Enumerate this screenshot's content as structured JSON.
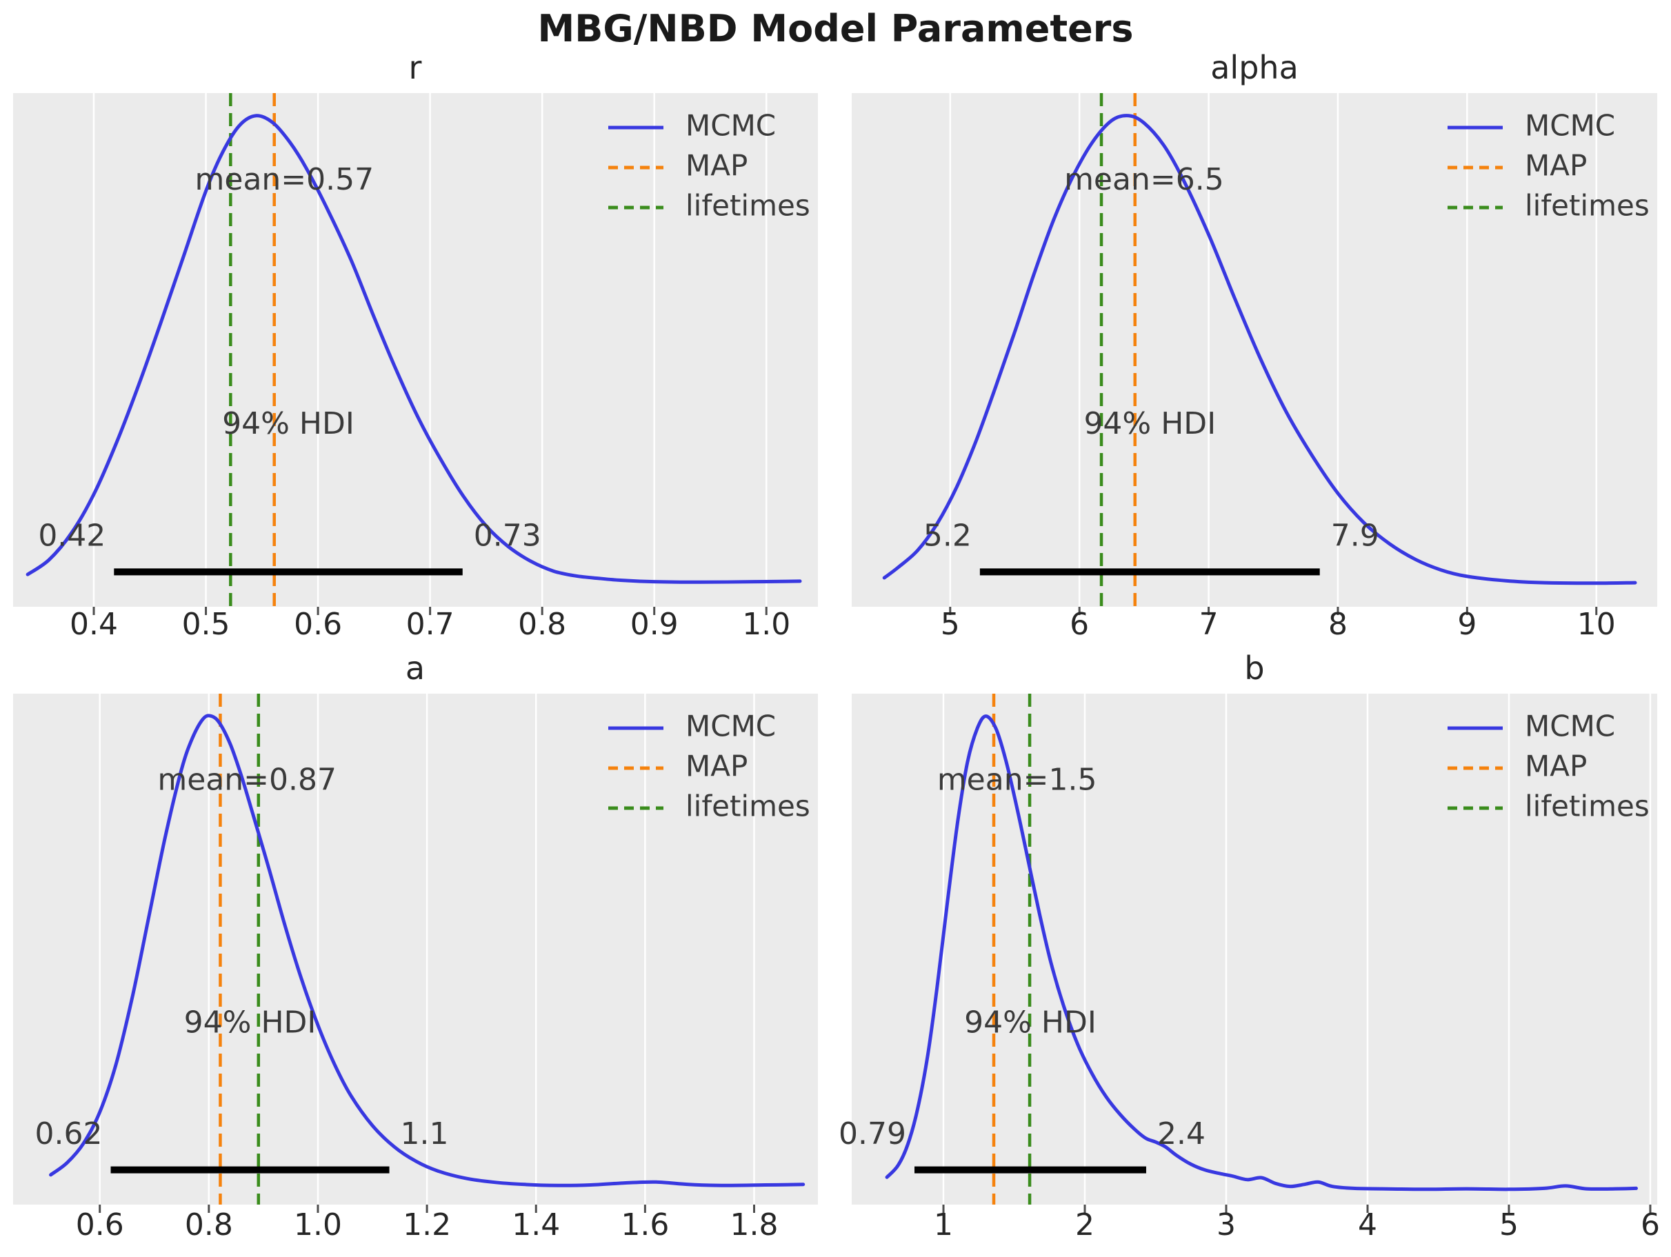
{
  "title": "MBG/NBD Model Parameters",
  "annotations": {
    "hdi_text": "94% HDI"
  },
  "legend": {
    "entries": [
      {
        "name": "mcmc",
        "label": "MCMC",
        "style": "solid",
        "color_key": "mcmc"
      },
      {
        "name": "map",
        "label": "MAP",
        "style": "dashed",
        "color_key": "map"
      },
      {
        "name": "lifetimes",
        "label": "lifetimes",
        "style": "dashed",
        "color_key": "lifetimes"
      }
    ]
  },
  "colors": {
    "mcmc": "#3838e0",
    "map": "#f5820d",
    "lifetimes": "#3a8c1c",
    "hdi_bar": "#000000",
    "plot_bg": "#ebebeb",
    "grid": "#ffffff",
    "tick": "#4d4d4d",
    "tick_label": "#262626",
    "text": "#3a3a3a",
    "title": "#262626",
    "suptitle": "#1a1a1a"
  },
  "chart_data": [
    {
      "name": "r",
      "type": "kde-line",
      "title": "r",
      "xlim": [
        0.328,
        1.046
      ],
      "tick_values": [
        0.4,
        0.5,
        0.6,
        0.7,
        0.8,
        0.9,
        1.0
      ],
      "tick_labels": [
        "0.4",
        "0.5",
        "0.6",
        "0.7",
        "0.8",
        "0.9",
        "1.0"
      ],
      "map_line_x": 0.561,
      "lifetimes_line_x": 0.522,
      "mean": {
        "label": "mean=0.57",
        "value": 0.57
      },
      "hdi": {
        "lo": 0.418,
        "hi": 0.729,
        "lo_label": "0.42",
        "hi_label": "0.73"
      },
      "series": [
        {
          "name": "MCMC",
          "x": [
            0.341,
            0.36,
            0.38,
            0.4,
            0.42,
            0.44,
            0.46,
            0.48,
            0.5,
            0.515,
            0.53,
            0.545,
            0.56,
            0.575,
            0.59,
            0.61,
            0.63,
            0.65,
            0.67,
            0.69,
            0.71,
            0.73,
            0.75,
            0.77,
            0.79,
            0.81,
            0.83,
            0.85,
            0.87,
            0.9,
            0.94,
            0.99,
            1.03
          ],
          "density_norm": [
            0.055,
            0.085,
            0.14,
            0.22,
            0.325,
            0.445,
            0.575,
            0.71,
            0.845,
            0.925,
            0.98,
            1.0,
            0.985,
            0.945,
            0.89,
            0.8,
            0.7,
            0.585,
            0.475,
            0.375,
            0.29,
            0.215,
            0.155,
            0.112,
            0.082,
            0.062,
            0.052,
            0.047,
            0.043,
            0.04,
            0.039,
            0.04,
            0.041
          ]
        }
      ]
    },
    {
      "name": "alpha",
      "type": "kde-line",
      "title": "alpha",
      "xlim": [
        4.238,
        10.471
      ],
      "tick_values": [
        5,
        6,
        7,
        8,
        9,
        10
      ],
      "tick_labels": [
        "5",
        "6",
        "7",
        "8",
        "9",
        "10"
      ],
      "map_line_x": 6.43,
      "lifetimes_line_x": 6.17,
      "mean": {
        "label": "mean=6.5",
        "value": 6.5
      },
      "hdi": {
        "lo": 5.23,
        "hi": 7.86,
        "lo_label": "5.2",
        "hi_label": "7.9"
      },
      "series": [
        {
          "name": "MCMC",
          "x": [
            4.49,
            4.6,
            4.75,
            4.9,
            5.05,
            5.2,
            5.35,
            5.5,
            5.65,
            5.8,
            5.95,
            6.1,
            6.25,
            6.38,
            6.5,
            6.65,
            6.8,
            7.0,
            7.2,
            7.4,
            7.6,
            7.8,
            8.0,
            8.2,
            8.4,
            8.6,
            8.8,
            9.0,
            9.3,
            9.6,
            10.0,
            10.3
          ],
          "density_norm": [
            0.048,
            0.07,
            0.105,
            0.16,
            0.235,
            0.33,
            0.44,
            0.555,
            0.675,
            0.785,
            0.875,
            0.945,
            0.99,
            1.0,
            0.985,
            0.94,
            0.87,
            0.755,
            0.625,
            0.5,
            0.39,
            0.3,
            0.222,
            0.162,
            0.118,
            0.086,
            0.064,
            0.051,
            0.042,
            0.038,
            0.037,
            0.038
          ]
        }
      ]
    },
    {
      "name": "a",
      "type": "kde-line",
      "title": "a",
      "xlim": [
        0.441,
        1.917
      ],
      "tick_values": [
        0.6,
        0.8,
        1.0,
        1.2,
        1.4,
        1.6,
        1.8
      ],
      "tick_labels": [
        "0.6",
        "0.8",
        "1.0",
        "1.2",
        "1.4",
        "1.6",
        "1.8"
      ],
      "map_line_x": 0.821,
      "lifetimes_line_x": 0.891,
      "mean": {
        "label": "mean=0.87",
        "value": 0.87
      },
      "hdi": {
        "lo": 0.62,
        "hi": 1.131,
        "lo_label": "0.62",
        "hi_label": "1.1"
      },
      "series": [
        {
          "name": "MCMC",
          "x": [
            0.51,
            0.54,
            0.57,
            0.6,
            0.63,
            0.66,
            0.69,
            0.72,
            0.75,
            0.77,
            0.79,
            0.805,
            0.82,
            0.84,
            0.86,
            0.88,
            0.91,
            0.94,
            0.97,
            1.0,
            1.03,
            1.06,
            1.1,
            1.14,
            1.18,
            1.22,
            1.27,
            1.32,
            1.38,
            1.44,
            1.5,
            1.56,
            1.62,
            1.68,
            1.74,
            1.82,
            1.89
          ],
          "density_norm": [
            0.05,
            0.075,
            0.115,
            0.18,
            0.28,
            0.42,
            0.585,
            0.75,
            0.89,
            0.955,
            0.995,
            1.0,
            0.985,
            0.94,
            0.875,
            0.8,
            0.685,
            0.565,
            0.455,
            0.36,
            0.28,
            0.215,
            0.152,
            0.108,
            0.078,
            0.058,
            0.043,
            0.035,
            0.03,
            0.028,
            0.029,
            0.033,
            0.035,
            0.03,
            0.028,
            0.029,
            0.03
          ]
        }
      ]
    },
    {
      "name": "b",
      "type": "kde-line",
      "title": "b",
      "xlim": [
        0.351,
        6.049
      ],
      "tick_values": [
        1,
        2,
        3,
        4,
        5,
        6
      ],
      "tick_labels": [
        "1",
        "2",
        "3",
        "4",
        "5",
        "6"
      ],
      "map_line_x": 1.356,
      "lifetimes_line_x": 1.61,
      "mean": {
        "label": "mean=1.5",
        "value": 1.52
      },
      "hdi": {
        "lo": 0.795,
        "hi": 2.434,
        "lo_label": "0.79",
        "hi_label": "2.4"
      },
      "series": [
        {
          "name": "MCMC",
          "x": [
            0.6,
            0.68,
            0.75,
            0.82,
            0.89,
            0.96,
            1.03,
            1.1,
            1.17,
            1.24,
            1.3,
            1.37,
            1.44,
            1.52,
            1.6,
            1.68,
            1.76,
            1.85,
            1.95,
            2.05,
            2.15,
            2.25,
            2.35,
            2.43,
            2.5,
            2.57,
            2.65,
            2.75,
            2.85,
            2.95,
            3.05,
            3.15,
            3.25,
            3.35,
            3.45,
            3.55,
            3.65,
            3.75,
            3.9,
            4.1,
            4.4,
            4.7,
            5.0,
            5.25,
            5.4,
            5.55,
            5.75,
            5.9
          ],
          "density_norm": [
            0.045,
            0.07,
            0.115,
            0.19,
            0.3,
            0.45,
            0.62,
            0.78,
            0.905,
            0.975,
            1.0,
            0.975,
            0.91,
            0.81,
            0.7,
            0.59,
            0.49,
            0.4,
            0.32,
            0.26,
            0.212,
            0.175,
            0.145,
            0.126,
            0.118,
            0.108,
            0.09,
            0.072,
            0.06,
            0.053,
            0.047,
            0.04,
            0.044,
            0.032,
            0.026,
            0.03,
            0.035,
            0.026,
            0.022,
            0.021,
            0.02,
            0.021,
            0.02,
            0.022,
            0.027,
            0.021,
            0.021,
            0.022
          ]
        }
      ]
    }
  ]
}
